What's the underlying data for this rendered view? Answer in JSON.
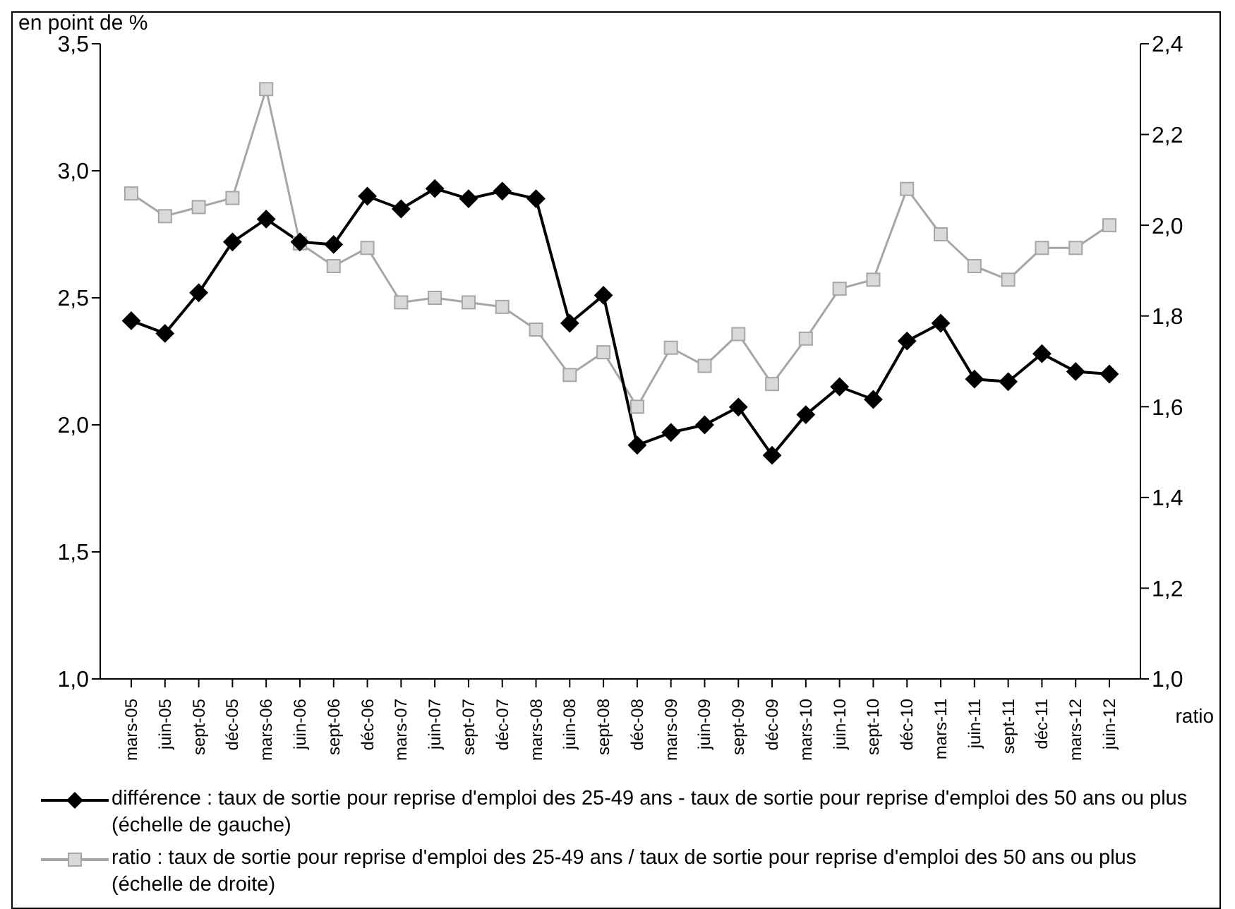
{
  "chart_data": {
    "type": "line",
    "ylabel": "en point de %",
    "y2label": "ratio",
    "categories": [
      "mars-05",
      "juin-05",
      "sept-05",
      "déc-05",
      "mars-06",
      "juin-06",
      "sept-06",
      "déc-06",
      "mars-07",
      "juin-07",
      "sept-07",
      "déc-07",
      "mars-08",
      "juin-08",
      "sept-08",
      "déc-08",
      "mars-09",
      "juin-09",
      "sept-09",
      "déc-09",
      "mars-10",
      "juin-10",
      "sept-10",
      "déc-10",
      "mars-11",
      "juin-11",
      "sept-11",
      "déc-11",
      "mars-12",
      "juin-12"
    ],
    "series": [
      {
        "name": "différence : taux de sortie pour reprise d'emploi des 25-49 ans - taux de sortie pour reprise d'emploi des 50 ans ou plus (échelle de gauche)",
        "color": "#000000",
        "marker": "diamond",
        "values": [
          2.41,
          2.36,
          2.52,
          2.72,
          2.81,
          2.72,
          2.71,
          2.9,
          2.85,
          2.93,
          2.89,
          2.92,
          2.89,
          2.4,
          2.51,
          1.92,
          1.97,
          2.0,
          2.07,
          1.88,
          2.04,
          2.15,
          2.1,
          2.33,
          2.4,
          2.18,
          2.17,
          2.28,
          2.21,
          2.2
        ]
      },
      {
        "name": "ratio : taux de sortie pour reprise d'emploi des 25-49 ans / taux de sortie pour reprise d'emploi des 50 ans ou plus (échelle de droite)",
        "color": "#a6a6a6",
        "marker": "square",
        "axis": "y2",
        "values": [
          2.07,
          2.02,
          2.04,
          2.06,
          2.3,
          1.96,
          1.91,
          1.95,
          1.83,
          1.84,
          1.83,
          1.82,
          1.77,
          1.67,
          1.72,
          1.6,
          1.73,
          1.69,
          1.76,
          1.65,
          1.75,
          1.86,
          1.88,
          2.08,
          1.98,
          1.91,
          1.88,
          1.95,
          1.95,
          2.0
        ]
      }
    ],
    "ylim": [
      1.0,
      3.5
    ],
    "yticks": [
      {
        "value": 1.0,
        "label": "1,0"
      },
      {
        "value": 1.5,
        "label": "1,5"
      },
      {
        "value": 2.0,
        "label": "2,0"
      },
      {
        "value": 2.5,
        "label": "2,5"
      },
      {
        "value": 3.0,
        "label": "3,0"
      },
      {
        "value": 3.5,
        "label": "3,5"
      }
    ],
    "y2lim": [
      1.0,
      2.4
    ],
    "y2ticks": [
      {
        "value": 1.0,
        "label": "1,0"
      },
      {
        "value": 1.2,
        "label": "1,2"
      },
      {
        "value": 1.4,
        "label": "1,4"
      },
      {
        "value": 1.6,
        "label": "1,6"
      },
      {
        "value": 1.8,
        "label": "1,8"
      },
      {
        "value": 2.0,
        "label": "2,0"
      },
      {
        "value": 2.2,
        "label": "2,2"
      },
      {
        "value": 2.4,
        "label": "2,4"
      }
    ],
    "grid": false,
    "legend": "bottom"
  }
}
